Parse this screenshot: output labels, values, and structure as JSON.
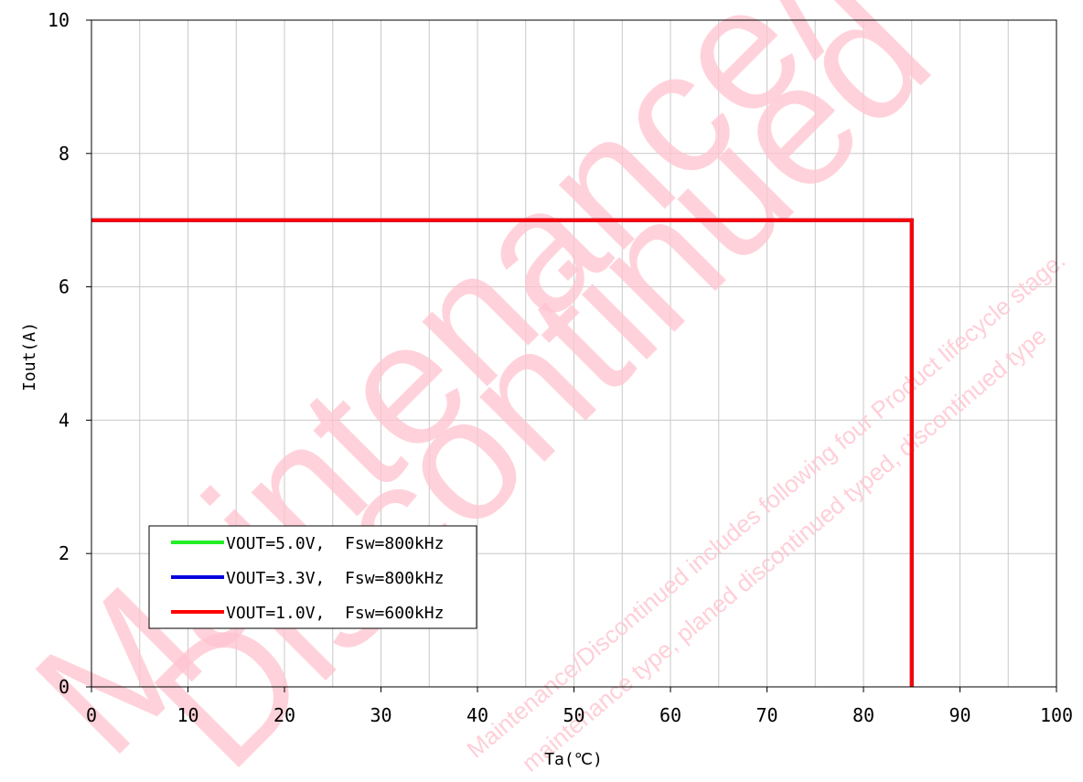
{
  "chart_data": {
    "type": "line",
    "xlabel": "Ta(℃)",
    "ylabel": "Iout(A)",
    "xlim": [
      0,
      100
    ],
    "ylim": [
      0,
      10
    ],
    "xticks": [
      0,
      10,
      20,
      30,
      40,
      50,
      60,
      70,
      80,
      90,
      100
    ],
    "yticks": [
      0,
      2,
      4,
      6,
      8,
      10
    ],
    "x_minor_step": 5,
    "grid": true,
    "legend_position": "bottom-left",
    "series": [
      {
        "name": "VOUT=5.0V, Fsw=800kHz",
        "color": "#22ee22",
        "points": [
          [
            0,
            7
          ],
          [
            85,
            7
          ],
          [
            85,
            0
          ]
        ]
      },
      {
        "name": "VOUT=3.3V, Fsw=800kHz",
        "color": "#0000dd",
        "points": [
          [
            0,
            7
          ],
          [
            85,
            7
          ],
          [
            85,
            0
          ]
        ]
      },
      {
        "name": "VOUT=1.0V, Fsw=600kHz",
        "color": "#ff0000",
        "points": [
          [
            0,
            7
          ],
          [
            85,
            7
          ],
          [
            85,
            0
          ]
        ]
      }
    ],
    "legend_labels": [
      "VOUT=5.0V,  Fsw=800kHz",
      "VOUT=3.3V,  Fsw=800kHz",
      "VOUT=1.0V,  Fsw=600kHz"
    ]
  },
  "watermark": {
    "line1": "Maintenance/",
    "line2": "Discontinued",
    "small1": "Maintenance/Discontinued includes following four Product lifecycle stage.",
    "small2": "maintenance type, planed discontinued typed, discontinued type"
  }
}
